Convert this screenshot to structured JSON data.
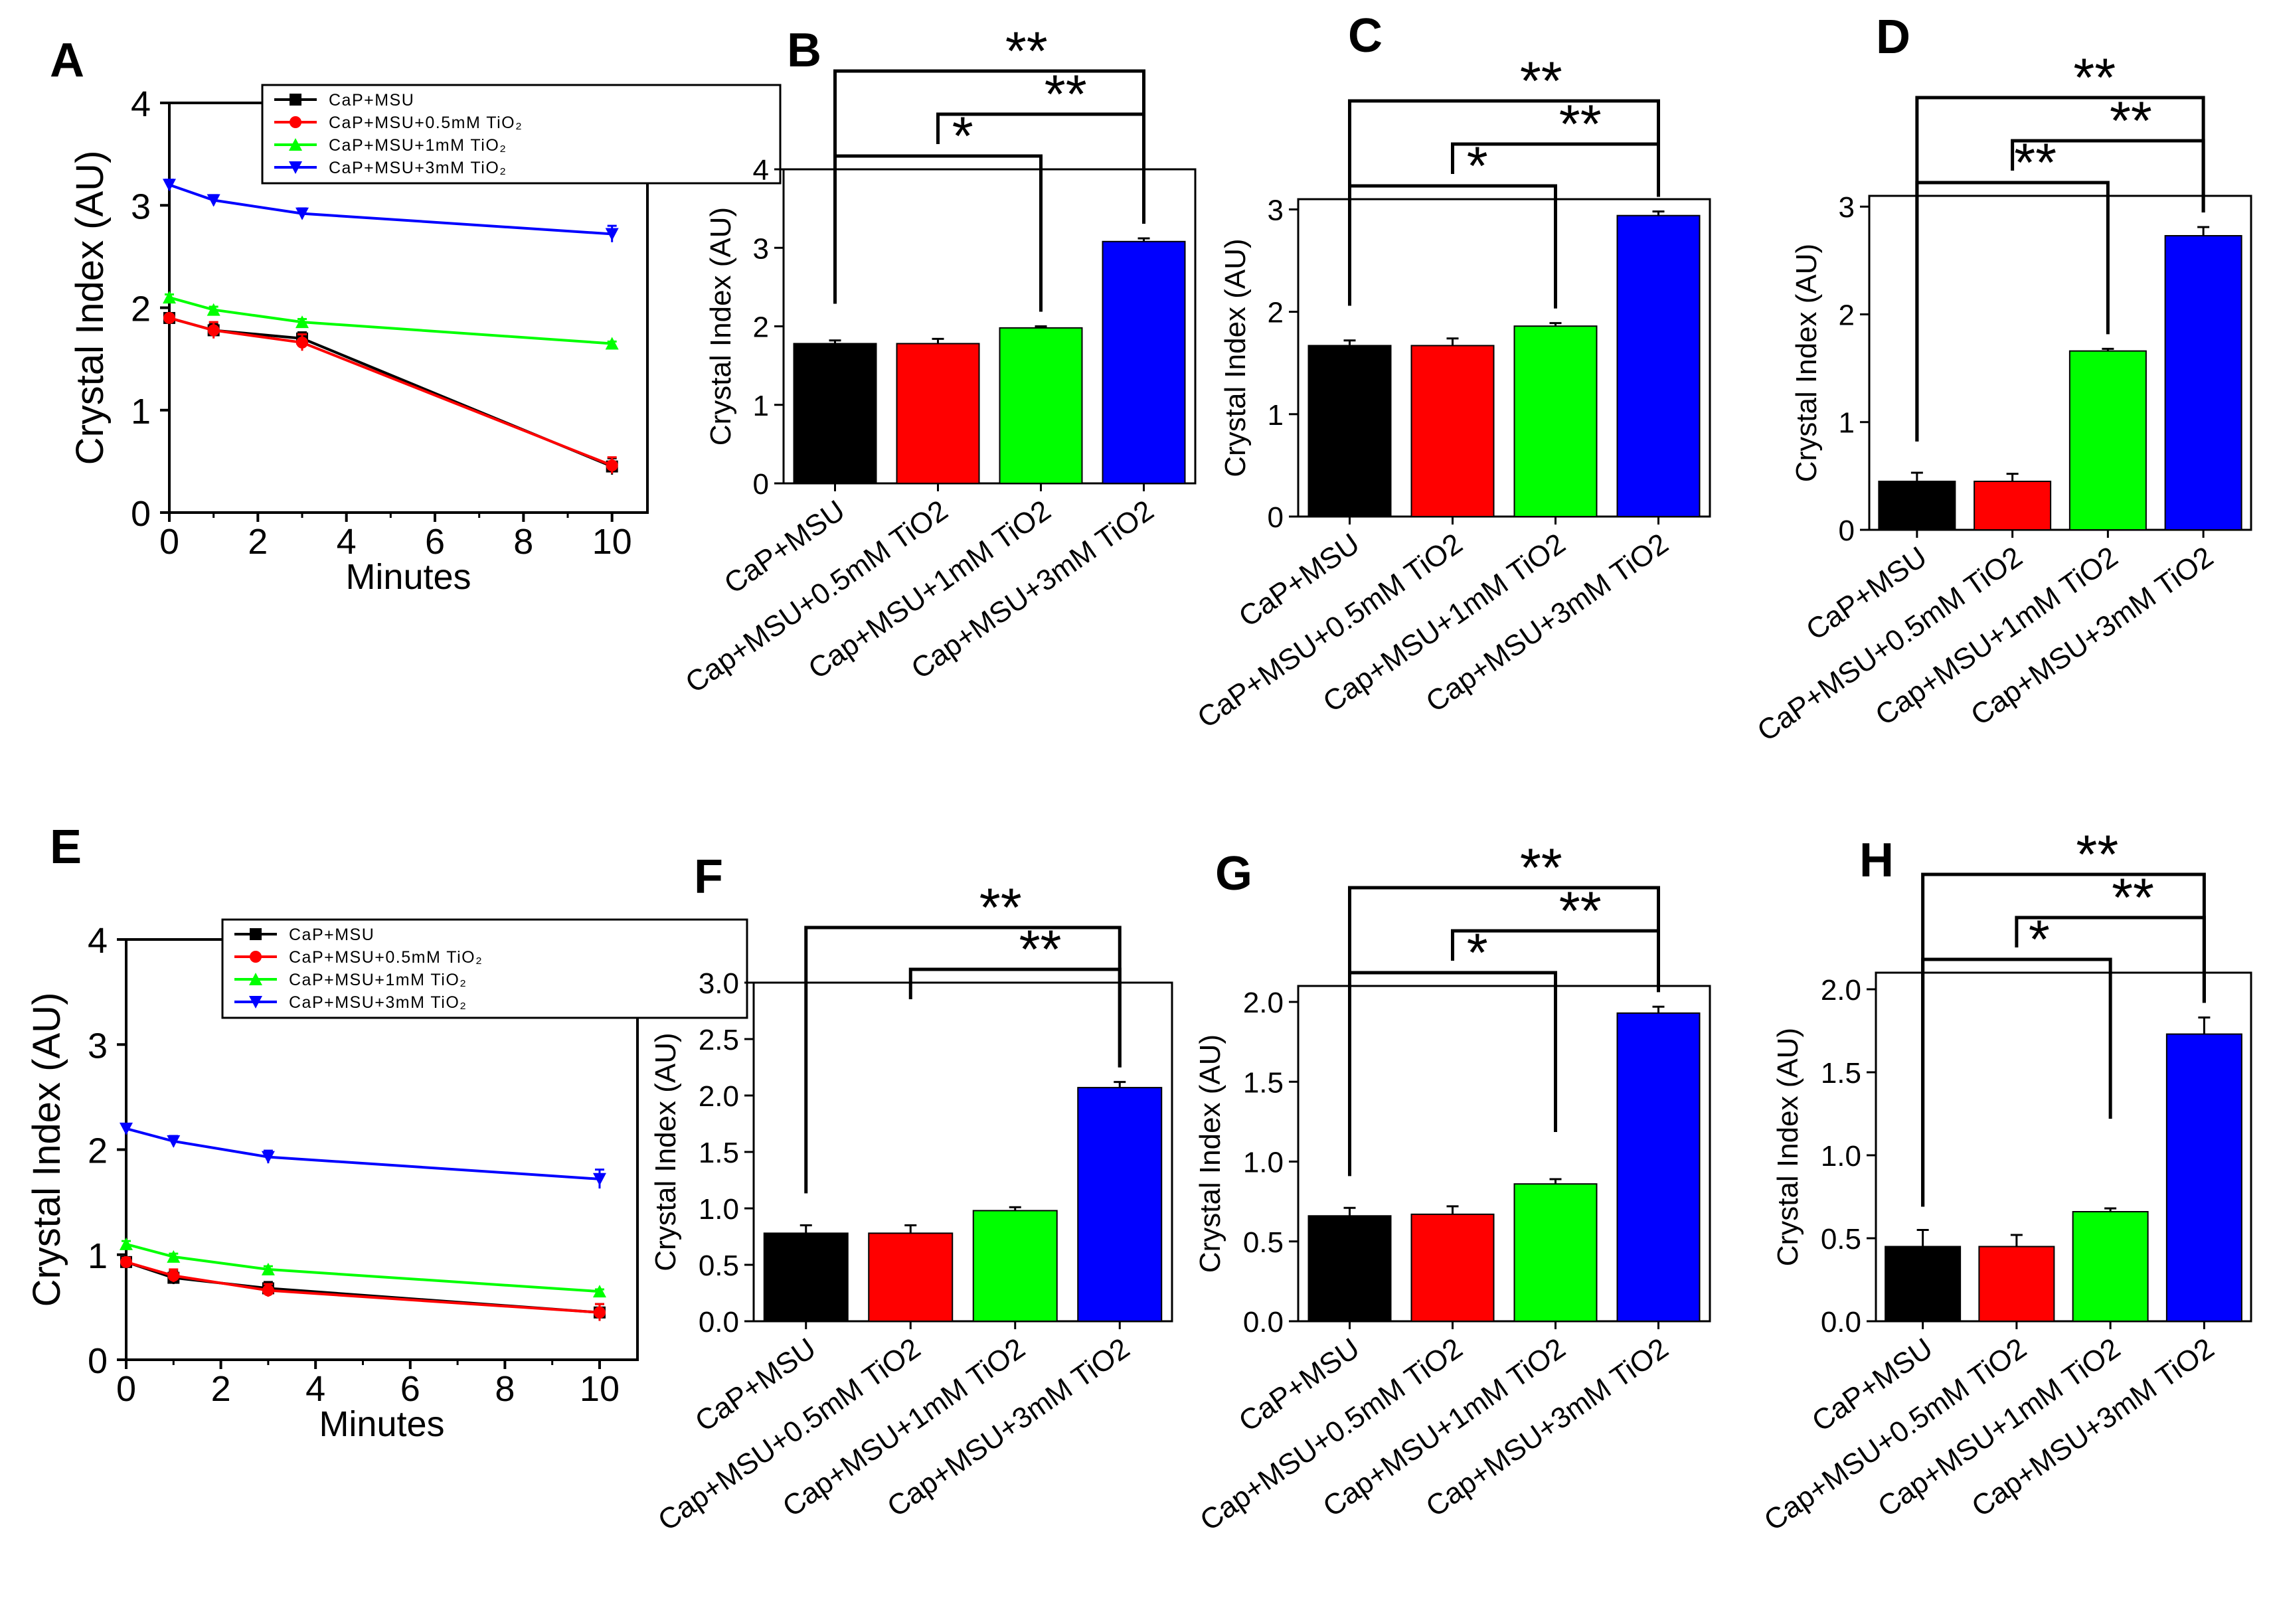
{
  "figure_caption": "",
  "colors": {
    "CaP+MSU": "#000000",
    "0.5mM": "#ff0000",
    "1mM": "#00ff00",
    "3mM": "#0000ff",
    "axis": "#000000"
  },
  "chart_data": [
    {
      "panel": "A",
      "type": "line",
      "xlabel": "Minutes",
      "ylabel": "Crystal Index (AU)",
      "xlim": [
        0,
        10.8
      ],
      "ylim": [
        0,
        4
      ],
      "xticks": [
        0,
        2,
        4,
        6,
        8,
        10
      ],
      "yticks": [
        0,
        1,
        2,
        3,
        4
      ],
      "legend_position": "top-center",
      "legend": [
        {
          "label": "CaP+MSU",
          "marker": "square"
        },
        {
          "label": "CaP+MSU+0.5mM  TiO₂",
          "marker": "circle"
        },
        {
          "label": "CaP+MSU+1mM  TiO₂",
          "marker": "triangle-up"
        },
        {
          "label": "CaP+MSU+3mM  TiO₂",
          "marker": "triangle-down"
        }
      ],
      "x": [
        0,
        1,
        3,
        10
      ],
      "series": [
        {
          "name": "CaP+MSU",
          "values": [
            1.9,
            1.78,
            1.7,
            0.45
          ],
          "errors": [
            0.03,
            0.06,
            0.06,
            0.08
          ]
        },
        {
          "name": "CaP+MSU+0.5mM TiO2",
          "values": [
            1.9,
            1.78,
            1.66,
            0.46
          ],
          "errors": [
            0.03,
            0.08,
            0.08,
            0.08
          ]
        },
        {
          "name": "CaP+MSU+1mM TiO2",
          "values": [
            2.1,
            1.98,
            1.86,
            1.65
          ],
          "errors": [
            0.03,
            0.03,
            0.03,
            0.02
          ]
        },
        {
          "name": "CaP+MSU+3mM TiO2",
          "values": [
            3.2,
            3.05,
            2.92,
            2.72
          ],
          "errors": [
            0.05,
            0.05,
            0.05,
            0.08
          ]
        }
      ]
    },
    {
      "panel": "B",
      "type": "bar",
      "ylabel": "Crystal Index (AU)",
      "ylim": [
        0,
        4
      ],
      "yticks": [
        "0",
        "1",
        "2",
        "3",
        "4"
      ],
      "categories": [
        "CaP+MSU",
        "Cap+MSU+0.5mM  TiO2",
        "Cap+MSU+1mM  TiO2",
        "Cap+MSU+3mM  TiO2"
      ],
      "values": [
        1.78,
        1.78,
        1.98,
        3.08
      ],
      "errors": [
        0.04,
        0.06,
        0.02,
        0.04
      ],
      "brackets": [
        {
          "from": 0,
          "to": 2,
          "label": "*"
        },
        {
          "from": 1,
          "to": 3,
          "label": "**"
        },
        {
          "from": 0,
          "to": 3,
          "label": "**"
        }
      ]
    },
    {
      "panel": "C",
      "type": "bar",
      "ylabel": "Crystal Index (AU)",
      "ylim": [
        0,
        3.1
      ],
      "yticks": [
        "0",
        "1",
        "2",
        "3"
      ],
      "categories": [
        "CaP+MSU",
        "CaP+MSU+0.5mM  TiO2",
        "Cap+MSU+1mM  TiO2",
        "Cap+MSU+3mM  TiO2"
      ],
      "values": [
        1.67,
        1.67,
        1.86,
        2.94
      ],
      "errors": [
        0.05,
        0.07,
        0.03,
        0.04
      ],
      "brackets": [
        {
          "from": 0,
          "to": 2,
          "label": "*"
        },
        {
          "from": 1,
          "to": 3,
          "label": "**"
        },
        {
          "from": 0,
          "to": 3,
          "label": "**"
        }
      ]
    },
    {
      "panel": "D",
      "type": "bar",
      "ylabel": "Crystal Index (AU)",
      "ylim": [
        0,
        3.1
      ],
      "yticks": [
        "0",
        "1",
        "2",
        "3"
      ],
      "categories": [
        "CaP+MSU",
        "CaP+MSU+0.5mM  TiO2",
        "Cap+MSU+1mM  TiO2",
        "Cap+MSU+3mM  TiO2"
      ],
      "values": [
        0.45,
        0.45,
        1.66,
        2.73
      ],
      "errors": [
        0.08,
        0.07,
        0.02,
        0.08
      ],
      "brackets": [
        {
          "from": 0,
          "to": 2,
          "label": "**"
        },
        {
          "from": 1,
          "to": 3,
          "label": "**"
        },
        {
          "from": 0,
          "to": 3,
          "label": "**"
        }
      ]
    },
    {
      "panel": "E",
      "type": "line",
      "xlabel": "Minutes",
      "ylabel": "Crystal Index (AU)",
      "xlim": [
        0,
        10.8
      ],
      "ylim": [
        0,
        4
      ],
      "xticks": [
        0,
        2,
        4,
        6,
        8,
        10
      ],
      "yticks": [
        0,
        1,
        2,
        3,
        4
      ],
      "legend_position": "top-center",
      "legend": [
        {
          "label": "CaP+MSU",
          "marker": "square"
        },
        {
          "label": "CaP+MSU+0.5mM  TiO₂",
          "marker": "circle"
        },
        {
          "label": "CaP+MSU+1mM  TiO₂",
          "marker": "triangle-up"
        },
        {
          "label": "CaP+MSU+3mM  TiO₂",
          "marker": "triangle-down"
        }
      ],
      "x": [
        0,
        1,
        3,
        10
      ],
      "series": [
        {
          "name": "CaP+MSU",
          "values": [
            0.93,
            0.78,
            0.68,
            0.45
          ],
          "errors": [
            0.04,
            0.06,
            0.06,
            0.08
          ]
        },
        {
          "name": "CaP+MSU+0.5mM TiO2",
          "values": [
            0.93,
            0.8,
            0.66,
            0.45
          ],
          "errors": [
            0.04,
            0.06,
            0.06,
            0.08
          ]
        },
        {
          "name": "CaP+MSU+1mM TiO2",
          "values": [
            1.1,
            0.98,
            0.86,
            0.65
          ],
          "errors": [
            0.03,
            0.03,
            0.03,
            0.02
          ]
        },
        {
          "name": "CaP+MSU+3mM TiO2",
          "values": [
            2.2,
            2.08,
            1.93,
            1.72
          ],
          "errors": [
            0.04,
            0.05,
            0.06,
            0.09
          ]
        }
      ]
    },
    {
      "panel": "F",
      "type": "bar",
      "ylabel": "Crystal Index (AU)",
      "ylim": [
        0,
        3.0
      ],
      "yticks": [
        "0.0",
        "0.5",
        "1.0",
        "1.5",
        "2.0",
        "2.5",
        "3.0"
      ],
      "categories": [
        "CaP+MSU",
        "Cap+MSU+0.5mM  TiO2",
        "Cap+MSU+1mM  TiO2",
        "Cap+MSU+3mM  TiO2"
      ],
      "values": [
        0.78,
        0.78,
        0.98,
        2.07
      ],
      "errors": [
        0.07,
        0.07,
        0.03,
        0.05
      ],
      "brackets": [
        {
          "from": 1,
          "to": 3,
          "label": "**"
        },
        {
          "from": 0,
          "to": 3,
          "label": "**"
        }
      ]
    },
    {
      "panel": "G",
      "type": "bar",
      "ylabel": "Crystal Index (AU)",
      "ylim": [
        0,
        2.1
      ],
      "yticks": [
        "0.0",
        "0.5",
        "1.0",
        "1.5",
        "2.0"
      ],
      "categories": [
        "CaP+MSU",
        "Cap+MSU+0.5mM  TiO2",
        "Cap+MSU+1mM  TiO2",
        "Cap+MSU+3mM  TiO2"
      ],
      "values": [
        0.66,
        0.67,
        0.86,
        1.93
      ],
      "errors": [
        0.05,
        0.05,
        0.03,
        0.04
      ],
      "brackets": [
        {
          "from": 0,
          "to": 2,
          "label": "*"
        },
        {
          "from": 1,
          "to": 3,
          "label": "**"
        },
        {
          "from": 0,
          "to": 3,
          "label": "**"
        }
      ]
    },
    {
      "panel": "H",
      "type": "bar",
      "ylabel": "Crystal Index (AU)",
      "ylim": [
        0,
        2.1
      ],
      "yticks": [
        "0.0",
        "0.5",
        "1.0",
        "1.5",
        "2.0"
      ],
      "categories": [
        "CaP+MSU",
        "Cap+MSU+0.5mM  TiO2",
        "Cap+MSU+1mM  TiO2",
        "Cap+MSU+3mM  TiO2"
      ],
      "values": [
        0.45,
        0.45,
        0.66,
        1.73
      ],
      "errors": [
        0.1,
        0.07,
        0.02,
        0.1
      ],
      "brackets": [
        {
          "from": 0,
          "to": 2,
          "label": "*"
        },
        {
          "from": 1,
          "to": 3,
          "label": "**"
        },
        {
          "from": 0,
          "to": 3,
          "label": "**"
        }
      ]
    }
  ]
}
